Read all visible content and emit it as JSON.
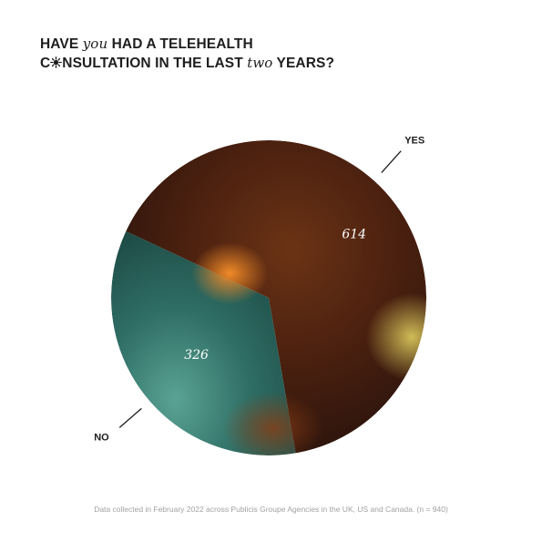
{
  "title": {
    "l1_a": "HAVE ",
    "l1_ital": "you",
    "l1_b": " HAD A TELEHEALTH",
    "l2_a": "C",
    "l2_b": "NSULTATION IN THE LAST ",
    "l2_ital": "two",
    "l2_c": " YEARS?"
  },
  "chart_data": {
    "type": "pie",
    "categories": [
      "YES",
      "NO"
    ],
    "values": [
      614,
      326
    ],
    "data_labels": [
      "614",
      "326"
    ]
  },
  "footnote": "Data collected in February 2022 across Publicis Groupe Agencies in the UK, US and Canada. (n = 940)"
}
